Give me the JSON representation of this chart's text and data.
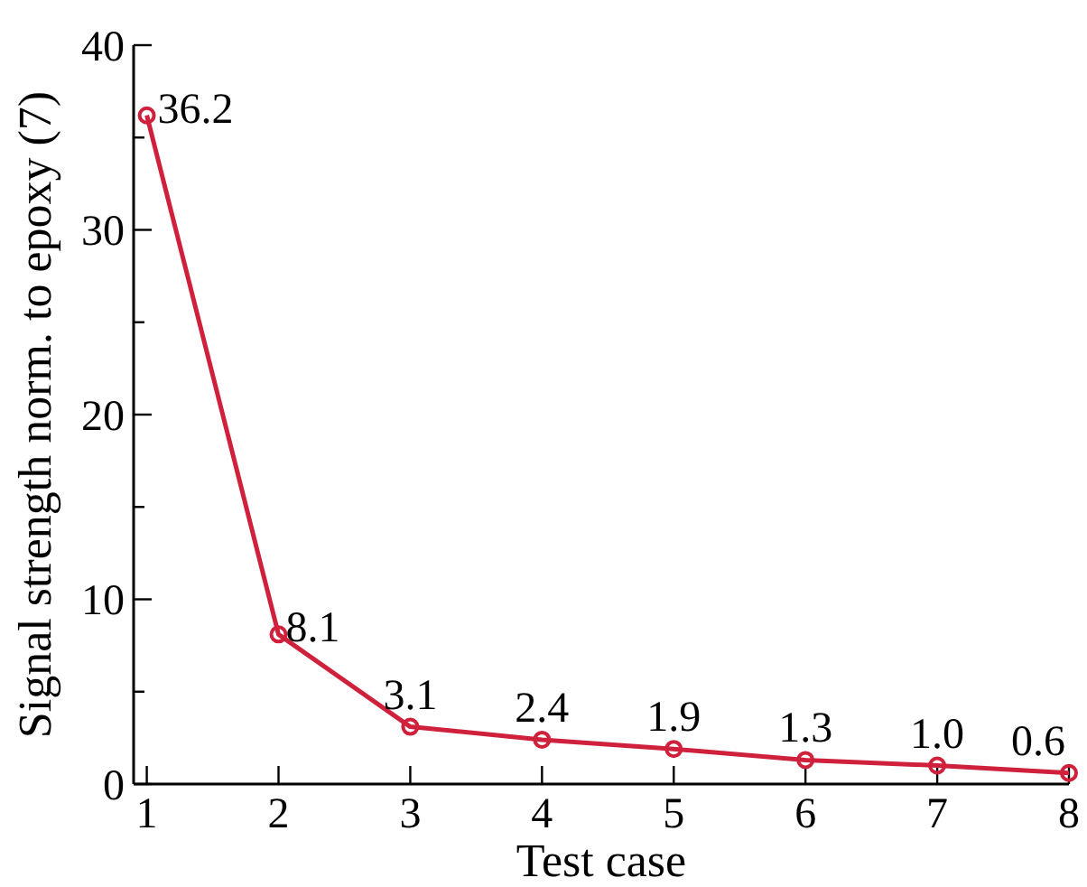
{
  "chart_data": {
    "type": "line",
    "xlabel": "Test case",
    "ylabel": "Signal strength norm. to epoxy (7)",
    "x": [
      1,
      2,
      3,
      4,
      5,
      6,
      7,
      8
    ],
    "series": [
      {
        "color": "#d0213c",
        "values": [
          36.2,
          8.1,
          3.1,
          2.4,
          1.9,
          1.3,
          1.0,
          0.6
        ]
      }
    ],
    "value_labels": [
      "36.2",
      "8.1",
      "3.1",
      "2.4",
      "1.9",
      "1.3",
      "1.0",
      "0.6"
    ],
    "xlim": [
      0.9,
      8
    ],
    "xticks": [
      1,
      2,
      3,
      4,
      5,
      6,
      7,
      8
    ],
    "ylim": [
      0,
      40
    ],
    "yticks": [
      0,
      {
        "value": 5,
        "label": null
      },
      10,
      {
        "value": 15,
        "label": null
      },
      20,
      {
        "value": 25,
        "label": null
      },
      30,
      {
        "value": 35,
        "label": null
      },
      40
    ],
    "marker": "circle",
    "line_style": "solid"
  }
}
